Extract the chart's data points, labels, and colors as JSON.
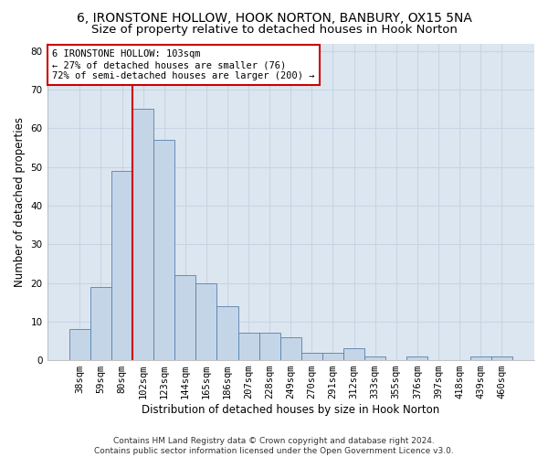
{
  "title": "6, IRONSTONE HOLLOW, HOOK NORTON, BANBURY, OX15 5NA",
  "subtitle": "Size of property relative to detached houses in Hook Norton",
  "xlabel": "Distribution of detached houses by size in Hook Norton",
  "ylabel": "Number of detached properties",
  "categories": [
    "38sqm",
    "59sqm",
    "80sqm",
    "102sqm",
    "123sqm",
    "144sqm",
    "165sqm",
    "186sqm",
    "207sqm",
    "228sqm",
    "249sqm",
    "270sqm",
    "291sqm",
    "312sqm",
    "333sqm",
    "355sqm",
    "376sqm",
    "397sqm",
    "418sqm",
    "439sqm",
    "460sqm"
  ],
  "values": [
    8,
    19,
    49,
    65,
    57,
    22,
    20,
    14,
    7,
    7,
    6,
    2,
    2,
    3,
    1,
    0,
    1,
    0,
    0,
    1,
    1
  ],
  "bar_color": "#c5d5e8",
  "bar_edge_color": "#5580aa",
  "grid_color": "#c8d4e4",
  "background_color": "#dce6f0",
  "annotation_box_text": "6 IRONSTONE HOLLOW: 103sqm\n← 27% of detached houses are smaller (76)\n72% of semi-detached houses are larger (200) →",
  "annotation_box_color": "#ffffff",
  "annotation_box_edge_color": "#cc0000",
  "vline_color": "#cc0000",
  "vline_xindex": 3,
  "ylim": [
    0,
    82
  ],
  "yticks": [
    0,
    10,
    20,
    30,
    40,
    50,
    60,
    70,
    80
  ],
  "footer": "Contains HM Land Registry data © Crown copyright and database right 2024.\nContains public sector information licensed under the Open Government Licence v3.0.",
  "title_fontsize": 10,
  "subtitle_fontsize": 9.5,
  "xlabel_fontsize": 8.5,
  "ylabel_fontsize": 8.5,
  "tick_fontsize": 7.5,
  "footer_fontsize": 6.5,
  "ann_fontsize": 7.5
}
